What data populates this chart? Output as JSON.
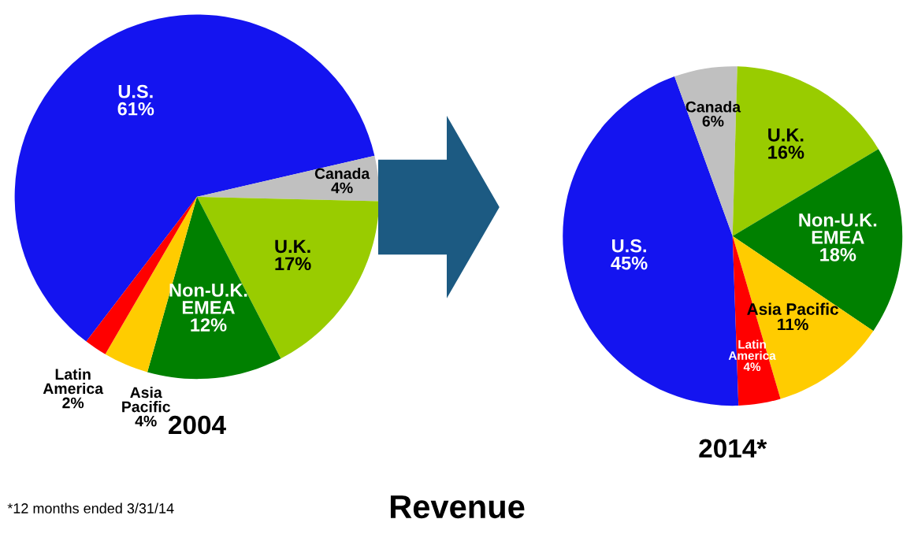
{
  "chart_data": [
    {
      "type": "pie",
      "title": "2004",
      "categories": [
        "U.S.",
        "Canada",
        "U.K.",
        "Non-U.K.\nEMEA",
        "Asia\nPacific",
        "Latin\nAmerica"
      ],
      "values": [
        61,
        4,
        17,
        12,
        4,
        2
      ],
      "value_labels": [
        "61%",
        "4%",
        "17%",
        "12%",
        "4%",
        "2%"
      ],
      "colors": [
        "#1414f0",
        "#c0c0c0",
        "#99cc00",
        "#008000",
        "#ffcc00",
        "#ff0000"
      ],
      "annotations": [
        "Revenue",
        "*12 months ended 3/31/14"
      ]
    },
    {
      "type": "pie",
      "title": "2014*",
      "categories": [
        "U.S.",
        "Canada",
        "U.K.",
        "Non-U.K.\nEMEA",
        "Asia Pacific",
        "Latin\nAmerica"
      ],
      "values": [
        45,
        6,
        16,
        18,
        11,
        4
      ],
      "value_labels": [
        "45%",
        "6%",
        "16%",
        "18%",
        "11%",
        "4%"
      ],
      "colors": [
        "#1414f0",
        "#c0c0c0",
        "#99cc00",
        "#008000",
        "#ffcc00",
        "#ff0000"
      ]
    }
  ]
}
